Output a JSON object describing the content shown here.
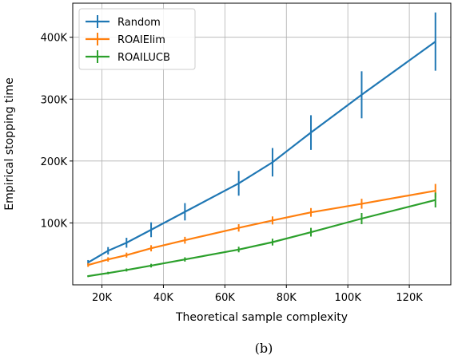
{
  "caption": "(b)",
  "chart_data": {
    "type": "line",
    "xlabel": "Theoretical sample complexity",
    "ylabel": "Empirical stopping time",
    "xlim": [
      10500,
      133500
    ],
    "ylim": [
      0,
      455000
    ],
    "x_ticks": [
      20000,
      40000,
      60000,
      80000,
      100000,
      120000
    ],
    "x_tick_labels": [
      "20K",
      "40K",
      "60K",
      "80K",
      "100K",
      "120K"
    ],
    "y_ticks": [
      100000,
      200000,
      300000,
      400000
    ],
    "y_tick_labels": [
      "100K",
      "200K",
      "300K",
      "400K"
    ],
    "grid": true,
    "legend_position": "top-left",
    "series": [
      {
        "name": "Random",
        "color": "#1f77b4",
        "x": [
          15500,
          22000,
          28000,
          36000,
          47000,
          64500,
          75500,
          88000,
          104500,
          128500
        ],
        "y": [
          36000,
          55000,
          68000,
          89000,
          118000,
          164000,
          198000,
          246000,
          307000,
          393000
        ],
        "err": [
          4000,
          6000,
          8000,
          12000,
          14000,
          20000,
          23000,
          28000,
          38000,
          47000
        ]
      },
      {
        "name": "ROAIElim",
        "color": "#ff7f0e",
        "x": [
          15500,
          22000,
          28000,
          36000,
          47000,
          64500,
          75500,
          88000,
          104500,
          128500
        ],
        "y": [
          32000,
          41000,
          48000,
          59000,
          72000,
          92000,
          104000,
          117000,
          131000,
          152000
        ],
        "err": [
          3000,
          3500,
          4000,
          5000,
          5500,
          6000,
          6500,
          7000,
          8000,
          11000
        ]
      },
      {
        "name": "ROAILUCB",
        "color": "#2ca02c",
        "x": [
          15500,
          22000,
          28000,
          36000,
          47000,
          64500,
          75500,
          88000,
          104500,
          128500
        ],
        "y": [
          14000,
          19000,
          24000,
          31000,
          41000,
          57000,
          69000,
          85000,
          107000,
          137000
        ],
        "err": [
          1500,
          2000,
          2500,
          3000,
          3500,
          4500,
          5500,
          7000,
          9000,
          12000
        ]
      }
    ]
  }
}
